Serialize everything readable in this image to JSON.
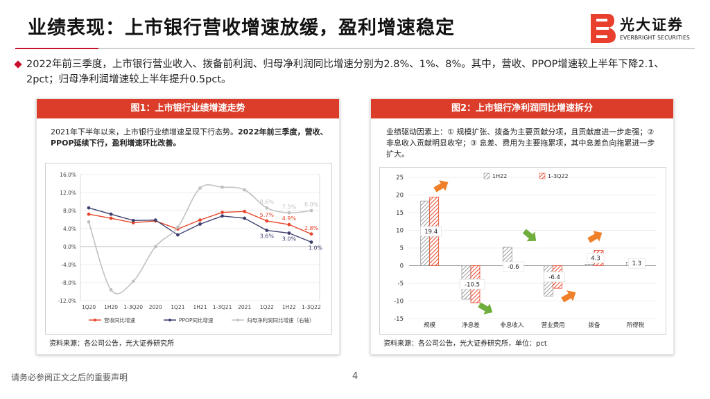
{
  "title": "业绩表现：上市银行营收增速放缓，盈利增速稳定",
  "logo": {
    "name": "光大证券",
    "sub": "EVERBRIGHT SECURITIES"
  },
  "lead": "2022年前三季度，上市银行营业收入、拨备前利润、归母净利润同比增速分别为2.8%、1%、8%。其中，营收、PPOP增速较上半年下降2.1、2pct；归母净利润增速较上半年提升0.5pct。",
  "left_panel": {
    "header": "图1：上市银行业绩增速走势",
    "desc_normal": "2021年下半年以来，上市银行业绩增速呈现下行态势。",
    "desc_bold": "2022年前三季度，营收、PPOP延续下行，盈利增速环比改善。",
    "source": "资料来源：各公司公告，光大证券研究所"
  },
  "right_panel": {
    "header": "图2：上市银行净利润同比增速拆分",
    "desc": "业绩驱动因素上：① 规模扩张、拨备为主要贡献分项，且贡献度进一步走强；② 非息收入贡献明显收窄；③ 息差、费用为主要拖累项，其中息差负向拖累进一步扩大。",
    "source": "资料来源：各公司公告，光大证券研究所，单位：pct"
  },
  "chart_data": [
    {
      "type": "line",
      "title": "上市银行业绩增速走势",
      "x": [
        "1Q20",
        "1H20",
        "1-3Q20",
        "2020",
        "1Q21",
        "1H21",
        "1-3Q21",
        "2021",
        "1Q22",
        "1H22",
        "1-3Q22"
      ],
      "y_ticks": [
        "16.0%",
        "12.0%",
        "8.0%",
        "4.0%",
        "0.0%",
        "-4.0%",
        "-8.0%",
        "-12.0%"
      ],
      "ylim": [
        -12,
        16
      ],
      "series": [
        {
          "name": "营收同比增速",
          "color": "#e8462a",
          "values": [
            7.2,
            6.3,
            5.3,
            5.7,
            3.9,
            5.9,
            7.6,
            7.8,
            5.7,
            4.9,
            2.8
          ],
          "labels": {
            "8": "5.7%",
            "9": "4.9%",
            "10": "2.8%"
          }
        },
        {
          "name": "PPOP同比增速",
          "color": "#3d3f6e",
          "values": [
            8.6,
            7.2,
            5.8,
            5.9,
            2.6,
            5.0,
            6.8,
            6.3,
            3.6,
            3.0,
            1.0
          ],
          "labels": {
            "8": "3.6%",
            "9": "3.0%",
            "10": "1.0%"
          }
        },
        {
          "name": "归母净利润同比增速（右轴）",
          "color": "#c0c0c0",
          "values": [
            5.5,
            -9.6,
            -7.7,
            0.0,
            4.3,
            13.0,
            13.2,
            12.6,
            8.6,
            7.5,
            8.0
          ],
          "labels": {
            "8": "8.6%",
            "9": "7.5%",
            "10": "8.0%"
          }
        }
      ],
      "legend": [
        "营收同比增速",
        "PPOP同比增速",
        "归母净利润同比增速（右轴）"
      ]
    },
    {
      "type": "bar",
      "title": "上市银行净利润同比增速拆分",
      "categories": [
        "规模",
        "净息差",
        "非息收入",
        "营业费用",
        "拨备",
        "所得税"
      ],
      "y_ticks": [
        "25",
        "20",
        "15",
        "10",
        "5",
        "0",
        "-5",
        "-10",
        "-15"
      ],
      "ylim": [
        -15,
        25
      ],
      "series": [
        {
          "name": "1H22",
          "color": "#9a9a9a",
          "values": [
            18.3,
            -9.5,
            5.2,
            -8.6,
            0.4,
            1.0
          ]
        },
        {
          "name": "1-3Q22",
          "color": "#e8462a",
          "values": [
            19.4,
            -10.5,
            -0.6,
            -6.4,
            4.3,
            1.3
          ]
        }
      ],
      "data_labels": [
        "19.4",
        "-10.5",
        "-0.6",
        "-6.4",
        "4.3",
        "1.3"
      ]
    }
  ],
  "footer_note": "请务必参阅正文之后的重要声明",
  "page_number": "4"
}
